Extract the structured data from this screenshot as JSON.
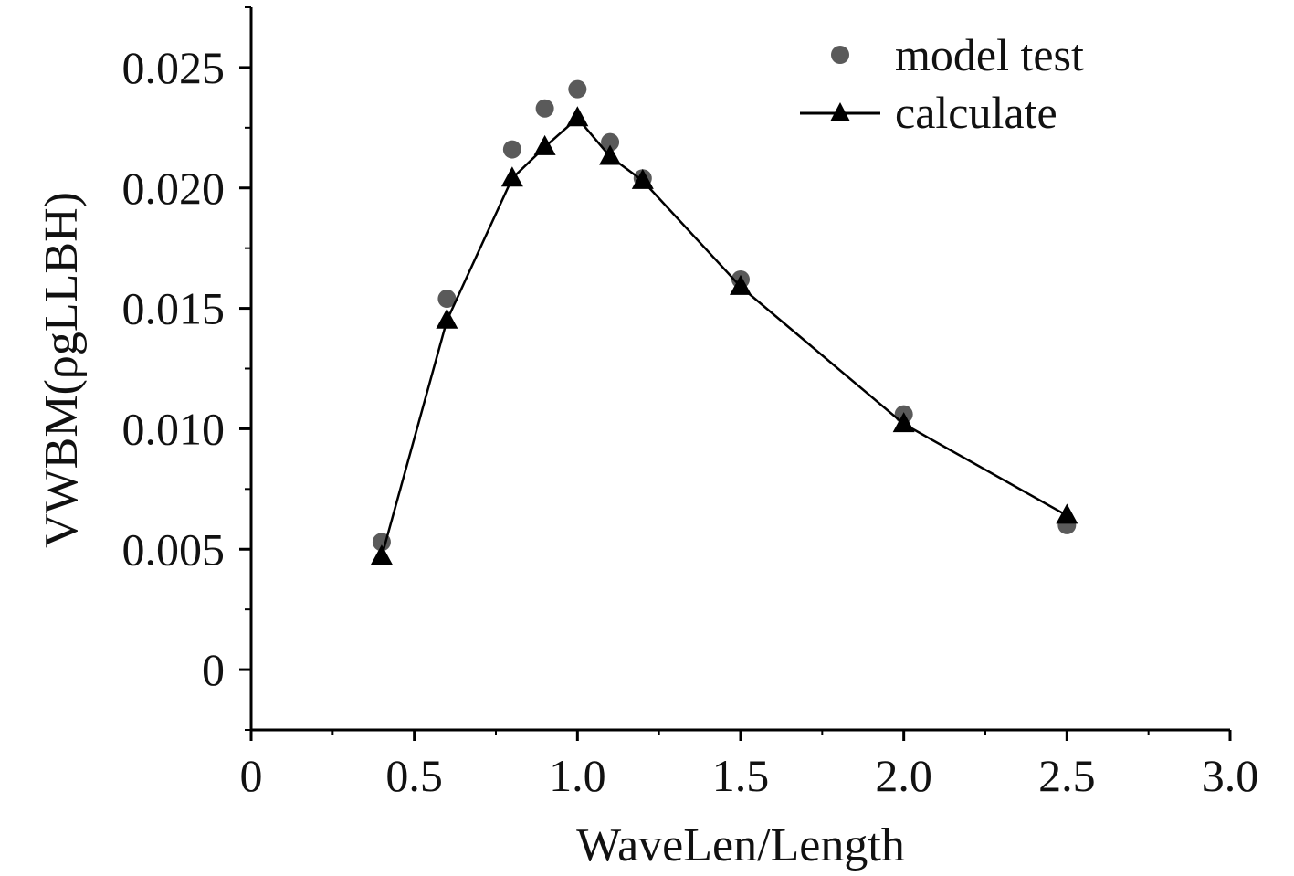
{
  "chart_data": {
    "type": "line",
    "title": "",
    "xlabel": "WaveLen/Length",
    "ylabel": "VWBM(ρgLLBH)",
    "xlim": [
      0,
      3.0
    ],
    "ylim": [
      -0.0025,
      0.0275
    ],
    "x_ticks": [
      0,
      0.5,
      1.0,
      1.5,
      2.0,
      2.5,
      3.0
    ],
    "x_tick_labels": [
      "0",
      "0.5",
      "1.0",
      "1.5",
      "2.0",
      "2.5",
      "3.0"
    ],
    "y_ticks": [
      0,
      0.005,
      0.01,
      0.015,
      0.02,
      0.025
    ],
    "y_tick_labels": [
      "0",
      "0.005",
      "0.010",
      "0.015",
      "0.020",
      "0.025"
    ],
    "grid": false,
    "legend_position": "top-right",
    "series": [
      {
        "name": "model test",
        "style": "scatter",
        "marker": "circle",
        "color": "#5a5a5a",
        "x": [
          0.4,
          0.6,
          0.8,
          0.9,
          1.0,
          1.1,
          1.2,
          1.5,
          2.0,
          2.5
        ],
        "values": [
          0.0053,
          0.0154,
          0.0216,
          0.0233,
          0.0241,
          0.0219,
          0.0204,
          0.0162,
          0.0106,
          0.006
        ]
      },
      {
        "name": "calculate",
        "style": "line",
        "marker": "triangle",
        "color": "#000000",
        "x": [
          0.4,
          0.6,
          0.8,
          0.9,
          1.0,
          1.1,
          1.2,
          1.5,
          2.0,
          2.5
        ],
        "values": [
          0.0047,
          0.0145,
          0.0204,
          0.0217,
          0.0229,
          0.0213,
          0.0203,
          0.0159,
          0.0102,
          0.0064
        ]
      }
    ]
  }
}
